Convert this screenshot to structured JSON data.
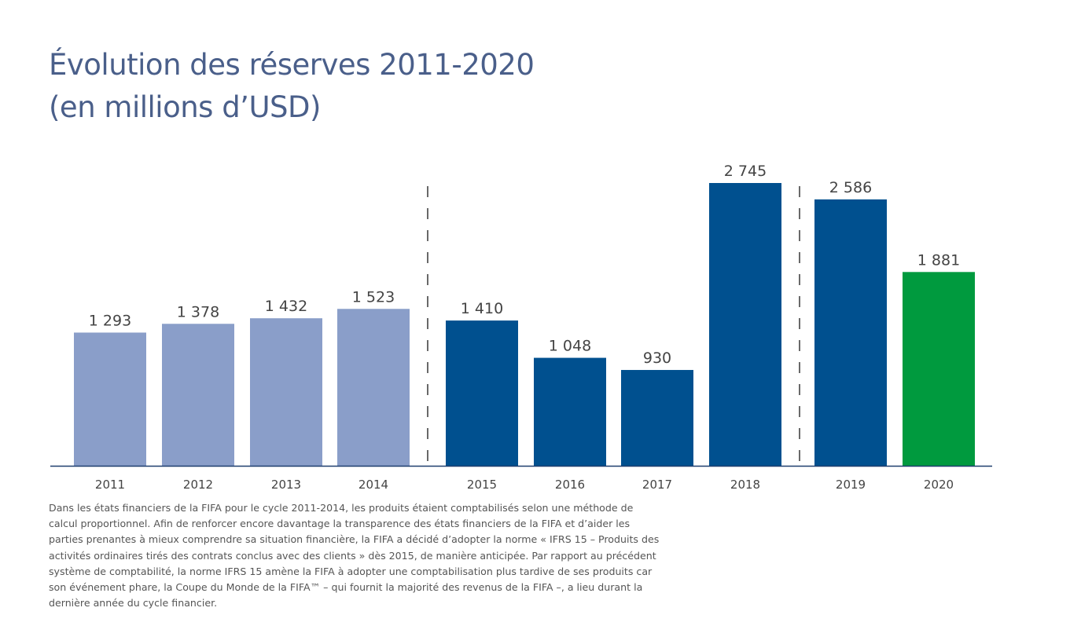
{
  "title": {
    "line1": "Évolution des réserves 2011-2020",
    "line2": "(en millions d’USD)"
  },
  "colors": {
    "cycle_2011_2014": "#8a9ec9",
    "cycle_2015_2018": "#00508f",
    "cycle_2019_2020": "#00508f",
    "highlight_2020": "#009a3e",
    "axis": "#1f3f6f",
    "divider": "#444444",
    "value_label": "#444444",
    "tick_label": "#444444"
  },
  "chart_data": {
    "type": "bar",
    "categories": [
      "2011",
      "2012",
      "2013",
      "2014",
      "2015",
      "2016",
      "2017",
      "2018",
      "2019",
      "2020"
    ],
    "values": [
      1293,
      1378,
      1432,
      1523,
      1410,
      1048,
      930,
      2745,
      2586,
      1881
    ],
    "value_labels": [
      "1 293",
      "1 378",
      "1 432",
      "1 523",
      "1 410",
      "1 048",
      "930",
      "2 745",
      "2 586",
      "1 881"
    ],
    "groups": [
      {
        "categories": [
          "2011",
          "2012",
          "2013",
          "2014"
        ],
        "color": "#8a9ec9"
      },
      {
        "categories": [
          "2015",
          "2016",
          "2017",
          "2018"
        ],
        "color": "#00508f"
      },
      {
        "categories": [
          "2019",
          "2020"
        ],
        "color": "#00508f",
        "highlight": {
          "category": "2020",
          "color": "#009a3e"
        }
      }
    ],
    "cycle_dividers_after": [
      "2014",
      "2018"
    ],
    "title": "Évolution des réserves 2011-2020 (en millions d’USD)",
    "xlabel": "",
    "ylabel": "",
    "ylim": [
      0,
      2745
    ],
    "grid": false,
    "legend": "none"
  },
  "footnote": "Dans les états financiers de la FIFA pour le cycle 2011-2014, les produits étaient comptabilisés selon une méthode de calcul proportionnel. Afin de renforcer encore davantage la transparence des états financiers de la FIFA et d’aider les parties prenantes à mieux comprendre sa situation financière, la FIFA a décidé d’adopter la norme « IFRS 15 – Produits des activités ordinaires tirés des contrats conclus avec des clients » dès 2015, de manière anticipée. Par rapport au précédent système de comptabilité, la norme IFRS 15 amène la FIFA à adopter une comptabilisation plus tardive de ses produits car son événement phare, la Coupe du Monde de la FIFA™ – qui fournit la majorité des revenus de la FIFA –, a lieu durant la dernière année du cycle financier."
}
